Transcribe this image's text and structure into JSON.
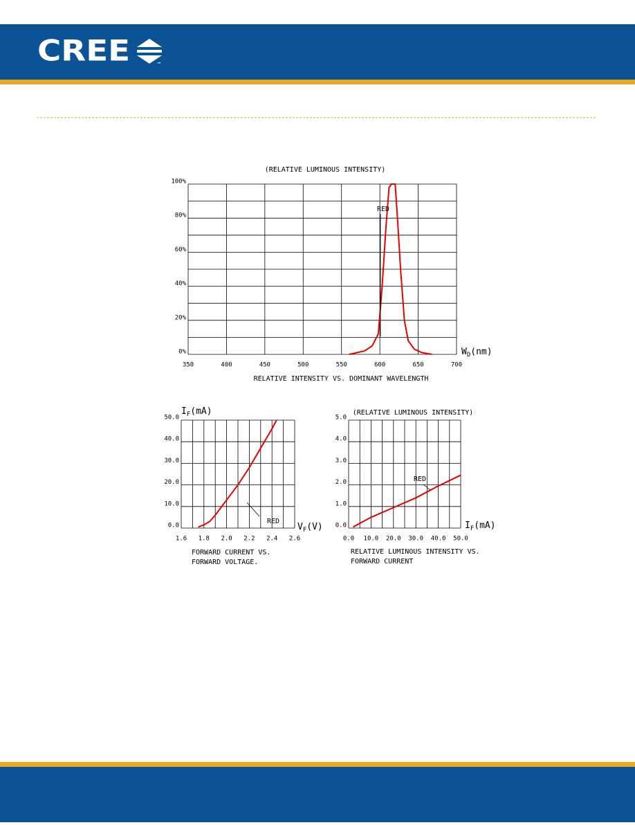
{
  "header": {
    "logo": "CREE",
    "logo_mark": "™"
  },
  "chart_data": [
    {
      "type": "line",
      "title": "(RELATIVE LUMINOUS INTENSITY)",
      "caption": [
        "RELATIVE INTENSITY  VS. DOMINANT WAVELENGTH"
      ],
      "x_label": [
        "W",
        "D",
        "(nm)"
      ],
      "xlim": [
        350,
        700
      ],
      "xticks": [
        350,
        400,
        450,
        500,
        550,
        600,
        650,
        700
      ],
      "ylim": [
        0,
        100
      ],
      "yticks": [
        {
          "value": 0,
          "label": "0%"
        },
        {
          "value": 20,
          "label": "20%"
        },
        {
          "value": 40,
          "label": "40%"
        },
        {
          "value": 60,
          "label": "60%"
        },
        {
          "value": 80,
          "label": "80%"
        },
        {
          "value": 100,
          "label": "100%"
        }
      ],
      "minor_yticks": [
        10,
        30,
        50,
        70,
        90
      ],
      "grid": true,
      "series": [
        {
          "name": "RED",
          "color": "#e60000",
          "x": [
            560,
            580,
            590,
            598,
            603,
            608,
            612,
            615,
            620,
            623,
            627,
            632,
            637,
            645,
            655,
            668
          ],
          "values": [
            0,
            2,
            5,
            12,
            40,
            75,
            98,
            100,
            100,
            80,
            50,
            20,
            8,
            3,
            1,
            0
          ]
        }
      ]
    },
    {
      "type": "line",
      "caption": [
        "FORWARD CURRENT VS.",
        "FORWARD VOLTAGE."
      ],
      "y_label": [
        "I",
        "F",
        "(mA)"
      ],
      "x_label": [
        "V",
        "F",
        "(V)"
      ],
      "xlim": [
        1.6,
        2.6
      ],
      "xticks": [
        1.6,
        1.8,
        {
          "value": 2,
          "label": "2.0"
        },
        2.2,
        2.4,
        2.6
      ],
      "minor_xticks": [
        1.7,
        1.9,
        2.1,
        2.3,
        2.5
      ],
      "ylim": [
        0,
        50
      ],
      "yticks": [
        {
          "value": 0,
          "label": "0.0"
        },
        {
          "value": 10,
          "label": "10.0"
        },
        {
          "value": 20,
          "label": "20.0"
        },
        {
          "value": 30,
          "label": "30.0"
        },
        {
          "value": 40,
          "label": "40.0"
        },
        {
          "value": 50,
          "label": "50.0"
        }
      ],
      "grid": true,
      "series": [
        {
          "name": "RED",
          "color": "#e60000",
          "x": [
            1.75,
            1.8,
            1.85,
            1.9,
            2.0,
            2.1,
            2.2,
            2.3,
            2.4,
            2.44
          ],
          "values": [
            0.5,
            1.5,
            3,
            6,
            13,
            20,
            28,
            37,
            46,
            50
          ]
        }
      ]
    },
    {
      "type": "line",
      "title": "(RELATIVE LUMINOUS INTENSITY)",
      "caption": [
        "RELATIVE LUMINOUS INTENSITY VS.",
        "FORWARD CURRENT"
      ],
      "x_label": [
        "I",
        "F",
        "(mA)"
      ],
      "xlim": [
        0,
        50
      ],
      "xticks": [
        {
          "value": 0,
          "label": "0.0"
        },
        {
          "value": 10,
          "label": "10.0"
        },
        {
          "value": 20,
          "label": "20.0"
        },
        {
          "value": 30,
          "label": "30.0"
        },
        {
          "value": 40,
          "label": "40.0"
        },
        {
          "value": 50,
          "label": "50.0"
        }
      ],
      "minor_xticks": [
        5,
        15,
        25,
        35,
        45
      ],
      "ylim": [
        0,
        5
      ],
      "yticks": [
        {
          "value": 0,
          "label": "0.0"
        },
        {
          "value": 1,
          "label": "1.0"
        },
        {
          "value": 2,
          "label": "2.0"
        },
        {
          "value": 3,
          "label": "3.0"
        },
        {
          "value": 4,
          "label": "4.0"
        },
        {
          "value": 5,
          "label": "5.0"
        }
      ],
      "grid": true,
      "series": [
        {
          "name": "RED",
          "color": "#e60000",
          "x": [
            2,
            10,
            20,
            30,
            40,
            50
          ],
          "values": [
            0.05,
            0.5,
            0.95,
            1.4,
            1.95,
            2.45
          ]
        }
      ]
    }
  ]
}
